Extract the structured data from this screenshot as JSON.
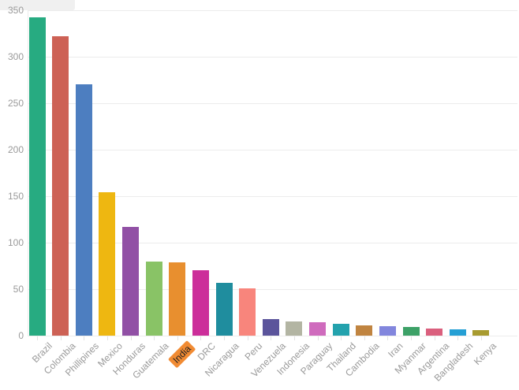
{
  "chart_data": {
    "type": "bar",
    "title": "",
    "xlabel": "",
    "ylabel": "",
    "categories": [
      "Brazil",
      "Colombia",
      "Phillipines",
      "Mexico",
      "Honduras",
      "Guatemala",
      "India",
      "DRC",
      "Nicaragua",
      "Peru",
      "Venezuela",
      "Indonesia",
      "Paraguay",
      "Thailand",
      "Cambodia",
      "Iran",
      "Myanmar",
      "Argentina",
      "Bangladesh",
      "Kenya"
    ],
    "values": [
      342,
      322,
      270,
      154,
      117,
      80,
      79,
      70,
      57,
      51,
      18,
      15,
      14,
      13,
      11,
      10,
      9,
      8,
      7,
      6
    ],
    "colors": [
      "#27ab81",
      "#cd6155",
      "#4d7ec0",
      "#eeb711",
      "#9150a5",
      "#89c366",
      "#e88f2f",
      "#cc2e9a",
      "#1f8d9e",
      "#f8857c",
      "#5b549b",
      "#b3b5a3",
      "#cf6bbd",
      "#23a2ad",
      "#c08440",
      "#8286dd",
      "#3da167",
      "#da5f7d",
      "#259fd4",
      "#a89b30"
    ],
    "ylim": [
      0,
      350
    ],
    "y_ticks": [
      0,
      50,
      100,
      150,
      200,
      250,
      300,
      350
    ],
    "y_tick_labels": [
      "0",
      "50",
      "100",
      "150",
      "200",
      "250",
      "300",
      "350"
    ],
    "grid": true,
    "legend": "none",
    "highlighted_category": "India",
    "highlight_bg_color": "#f18b33",
    "highlight_text_color": "#222222",
    "axis_text_color": "#9a9a9a",
    "gridline_color": "#ececec"
  }
}
